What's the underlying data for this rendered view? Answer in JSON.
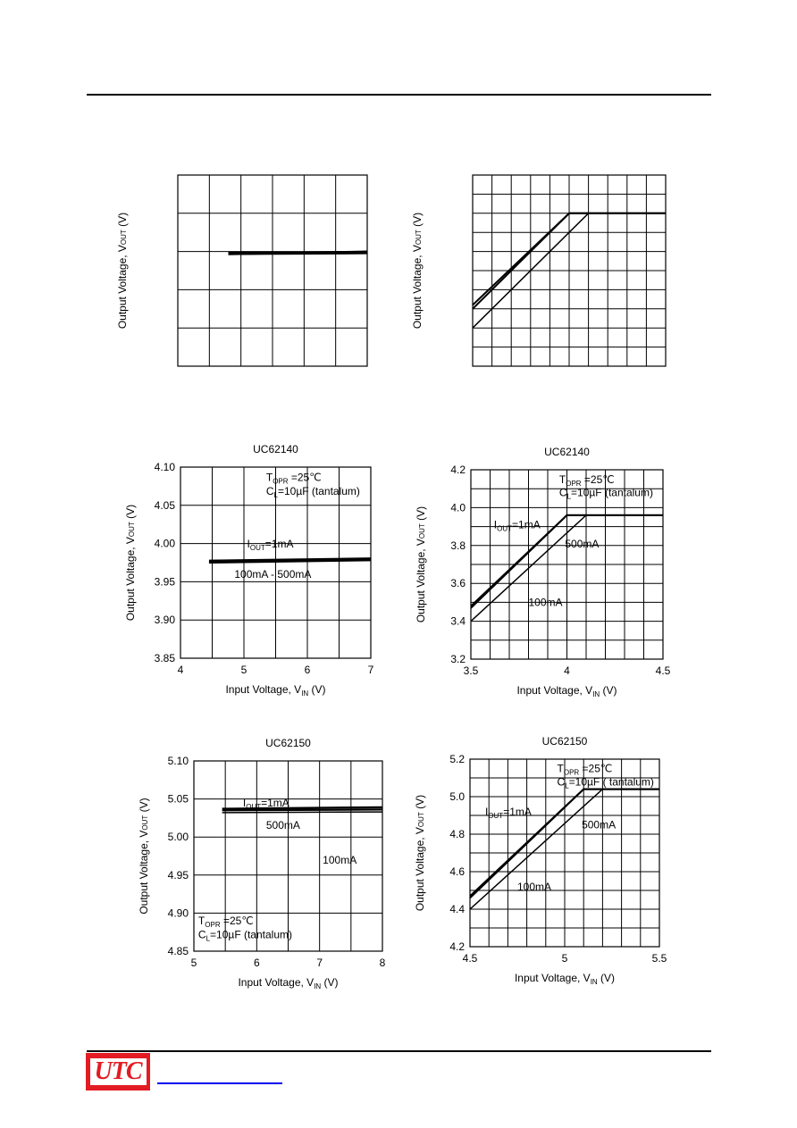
{
  "colors": {
    "brand": "#e31b23",
    "link": "#0000ee"
  },
  "logo_text": "UTC",
  "chart_data": [
    {
      "type": "line",
      "title": "",
      "xlabel": "",
      "ylabel_html": "Output Voltage, V<tspan font-size='8'>OUT</tspan> (V)",
      "xlim": [
        0,
        6
      ],
      "ylim": [
        0,
        5
      ],
      "xticks": [],
      "yticks": [],
      "xgrid": 6,
      "ygrid": 5,
      "annotations": [],
      "series": [
        {
          "x": [
            1.6,
            6.0
          ],
          "y": [
            2.95,
            2.97
          ],
          "width": 3.6
        },
        {
          "x": [
            1.6,
            6.0
          ],
          "y": [
            2.93,
            3.0
          ],
          "width": 2.2
        }
      ]
    },
    {
      "type": "line",
      "title": "",
      "xlabel": "",
      "ylabel_html": "Output Voltage, V<tspan font-size='8'>OUT</tspan> (V)",
      "xlim": [
        0,
        10
      ],
      "ylim": [
        0,
        10
      ],
      "xticks": [],
      "yticks": [],
      "xgrid": 10,
      "ygrid": 10,
      "annotations": [],
      "series": [
        {
          "x": [
            0,
            5.0,
            10
          ],
          "y": [
            3.0,
            8.0,
            8.0
          ],
          "width": 2
        },
        {
          "x": [
            0,
            5.0,
            10
          ],
          "y": [
            3.2,
            8.0,
            8.0
          ],
          "width": 2
        },
        {
          "x": [
            0,
            6.0,
            10
          ],
          "y": [
            2.0,
            8.0,
            8.0
          ],
          "width": 1.5
        }
      ]
    },
    {
      "type": "line",
      "title": "UC62140",
      "xlabel_html": "Input Voltage, V<tspan font-size='8' dy='3'>IN</tspan><tspan dy='-3'> (V)</tspan>",
      "ylabel_html": "Output Voltage, V<tspan font-size='8'>OUT</tspan> (V)",
      "xlim": [
        4,
        7
      ],
      "ylim": [
        3.85,
        4.1
      ],
      "xticks": [
        "4",
        "5",
        "6",
        "7"
      ],
      "yticks": [
        "3.85",
        "3.90",
        "3.95",
        "4.00",
        "4.05",
        "4.10"
      ],
      "xgrid": 6,
      "ygrid": 5,
      "annotations": [
        {
          "text_html": "T<tspan font-size='8' dy='3'>OPR</tspan><tspan dy='-3'> =25℃</tspan>",
          "x": 5.35,
          "y": 4.082
        },
        {
          "text_html": "C<tspan font-size='8' dy='3'>L</tspan><tspan dy='-3'>=10µF (tantalum)</tspan>",
          "x": 5.35,
          "y": 4.064
        },
        {
          "text_html": "I<tspan font-size='8' dy='3'>OUT</tspan><tspan dy='-3'>=1mA</tspan>",
          "x": 5.05,
          "y": 3.995
        },
        {
          "text_html": "100mA - 500mA",
          "x": 4.85,
          "y": 3.955
        }
      ],
      "series": [
        {
          "name": "1mA",
          "x": [
            4.45,
            7.0
          ],
          "y": [
            3.978,
            3.981
          ],
          "width": 1.5
        },
        {
          "name": "100mA",
          "x": [
            4.45,
            7.0
          ],
          "y": [
            3.976,
            3.979
          ],
          "width": 2.5
        },
        {
          "name": "500mA",
          "x": [
            4.45,
            7.0
          ],
          "y": [
            3.975,
            3.978
          ],
          "width": 2
        }
      ]
    },
    {
      "type": "line",
      "title": "UC62140",
      "xlabel_html": "Input Voltage, V<tspan font-size='8' dy='3'>IN</tspan><tspan dy='-3'> (V)</tspan>",
      "ylabel_html": "Output Voltage, V<tspan font-size='8'>OUT</tspan> (V)",
      "xlim": [
        3.5,
        4.5
      ],
      "ylim": [
        3.2,
        4.2
      ],
      "xticks": [
        "3.5",
        "4",
        "4.5"
      ],
      "yticks": [
        "3.2",
        "3.4",
        "3.6",
        "3.8",
        "4.0",
        "4.2"
      ],
      "xgrid": 10,
      "ygrid": 10,
      "annotations": [
        {
          "text_html": "T<tspan font-size='8' dy='3'>OPR</tspan><tspan dy='-3'> =25℃</tspan>",
          "x": 3.96,
          "y": 4.13
        },
        {
          "text_html": "C<tspan font-size='8' dy='3'>L</tspan><tspan dy='-3'>=10µF (tantalum)</tspan>",
          "x": 3.96,
          "y": 4.06
        },
        {
          "text_html": "I<tspan font-size='8' dy='3'>OUT</tspan><tspan dy='-3'>=1mA</tspan>",
          "x": 3.62,
          "y": 3.89
        },
        {
          "text_html": "500mA",
          "x": 3.99,
          "y": 3.79
        },
        {
          "text_html": "100mA",
          "x": 3.8,
          "y": 3.48
        }
      ],
      "series": [
        {
          "name": "1mA",
          "x": [
            3.5,
            4.0,
            4.5
          ],
          "y": [
            3.48,
            3.96,
            3.96
          ],
          "width": 2
        },
        {
          "name": "100mA",
          "x": [
            3.5,
            4.0,
            4.5
          ],
          "y": [
            3.47,
            3.96,
            3.96
          ],
          "width": 2
        },
        {
          "name": "500mA",
          "x": [
            3.5,
            4.1,
            4.5
          ],
          "y": [
            3.4,
            3.96,
            3.96
          ],
          "width": 1.5
        }
      ]
    },
    {
      "type": "line",
      "title": "UC62150",
      "xlabel_html": "Input Voltage, V<tspan font-size='8' dy='3'>IN</tspan><tspan dy='-3'> (V)</tspan>",
      "ylabel_html": "Output Voltage, V<tspan font-size='8'>OUT</tspan> (V)",
      "xlim": [
        5,
        8
      ],
      "ylim": [
        4.85,
        5.1
      ],
      "xticks": [
        "5",
        "6",
        "7",
        "8"
      ],
      "yticks": [
        "4.85",
        "4.90",
        "4.95",
        "5.00",
        "5.05",
        "5.10"
      ],
      "xgrid": 6,
      "ygrid": 5,
      "annotations": [
        {
          "text_html": "I<tspan font-size='8' dy='3'>OUT</tspan><tspan dy='-3'>=1mA</tspan>",
          "x": 5.78,
          "y": 5.04
        },
        {
          "text_html": "500mA",
          "x": 6.15,
          "y": 5.011
        },
        {
          "text_html": "100mA",
          "x": 7.05,
          "y": 4.965
        },
        {
          "text_html": "T<tspan font-size='8' dy='3'>OPR</tspan><tspan dy='-3'> =25℃</tspan>",
          "x": 5.07,
          "y": 4.885
        },
        {
          "text_html": "C<tspan font-size='8' dy='3'>L</tspan><tspan dy='-3'>=10µF (tantalum)</tspan>",
          "x": 5.07,
          "y": 4.867
        }
      ],
      "series": [
        {
          "name": "1mA",
          "x": [
            5.45,
            8.0
          ],
          "y": [
            5.037,
            5.039
          ],
          "width": 2.5
        },
        {
          "name": "100mA",
          "x": [
            5.45,
            8.0
          ],
          "y": [
            5.035,
            5.036
          ],
          "width": 2
        },
        {
          "name": "500mA",
          "x": [
            5.45,
            8.0
          ],
          "y": [
            5.032,
            5.033
          ],
          "width": 1.5
        }
      ]
    },
    {
      "type": "line",
      "title": "UC62150",
      "xlabel_html": "Input Voltage, V<tspan font-size='8' dy='3'>IN</tspan><tspan dy='-3'> (V)</tspan>",
      "ylabel_html": "Output Voltage, V<tspan font-size='8'>OUT</tspan> (V)",
      "xlim": [
        4.5,
        5.5
      ],
      "ylim": [
        4.2,
        5.2
      ],
      "xticks": [
        "4.5",
        "5",
        "5.5"
      ],
      "yticks": [
        "4.2",
        "4.4",
        "4.6",
        "4.8",
        "5.0",
        "5.2"
      ],
      "xgrid": 10,
      "ygrid": 10,
      "annotations": [
        {
          "text_html": "T<tspan font-size='8' dy='3'>OPR</tspan><tspan dy='-3'> =25℃</tspan>",
          "x": 4.96,
          "y": 5.13
        },
        {
          "text_html": "C<tspan font-size='8' dy='3'>L</tspan><tspan dy='-3'>=10µF ( tantalum)</tspan>",
          "x": 4.96,
          "y": 5.06
        },
        {
          "text_html": "I<tspan font-size='8' dy='3'>OUT</tspan><tspan dy='-3'>=1mA</tspan>",
          "x": 4.58,
          "y": 4.9
        },
        {
          "text_html": "500mA",
          "x": 5.09,
          "y": 4.83
        },
        {
          "text_html": "100mA",
          "x": 4.75,
          "y": 4.5
        }
      ],
      "series": [
        {
          "name": "1mA",
          "x": [
            4.5,
            5.1,
            5.5
          ],
          "y": [
            4.47,
            5.04,
            5.04
          ],
          "width": 2
        },
        {
          "name": "100mA",
          "x": [
            4.5,
            5.1,
            5.5
          ],
          "y": [
            4.46,
            5.04,
            5.04
          ],
          "width": 2
        },
        {
          "name": "500mA",
          "x": [
            4.5,
            5.2,
            5.5
          ],
          "y": [
            4.4,
            5.04,
            5.04
          ],
          "width": 1.5
        }
      ]
    }
  ]
}
